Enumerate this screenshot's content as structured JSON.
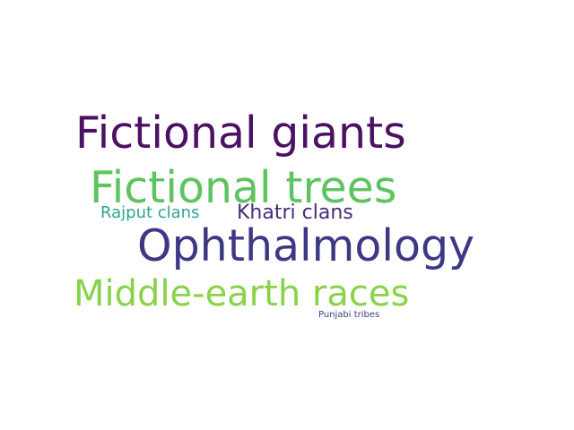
{
  "word_cloud": {
    "words": [
      {
        "text": "Fictional giants",
        "color": "#4b1263"
      },
      {
        "text": "Fictional trees",
        "color": "#5ec45f"
      },
      {
        "text": "Rajput clans",
        "color": "#2ea58f"
      },
      {
        "text": "Khatri clans",
        "color": "#472c79"
      },
      {
        "text": "Ophthalmology",
        "color": "#3d3884"
      },
      {
        "text": "Middle-earth races",
        "color": "#8ad24a"
      },
      {
        "text": "Punjabi tribes",
        "color": "#3b3f85"
      }
    ]
  }
}
